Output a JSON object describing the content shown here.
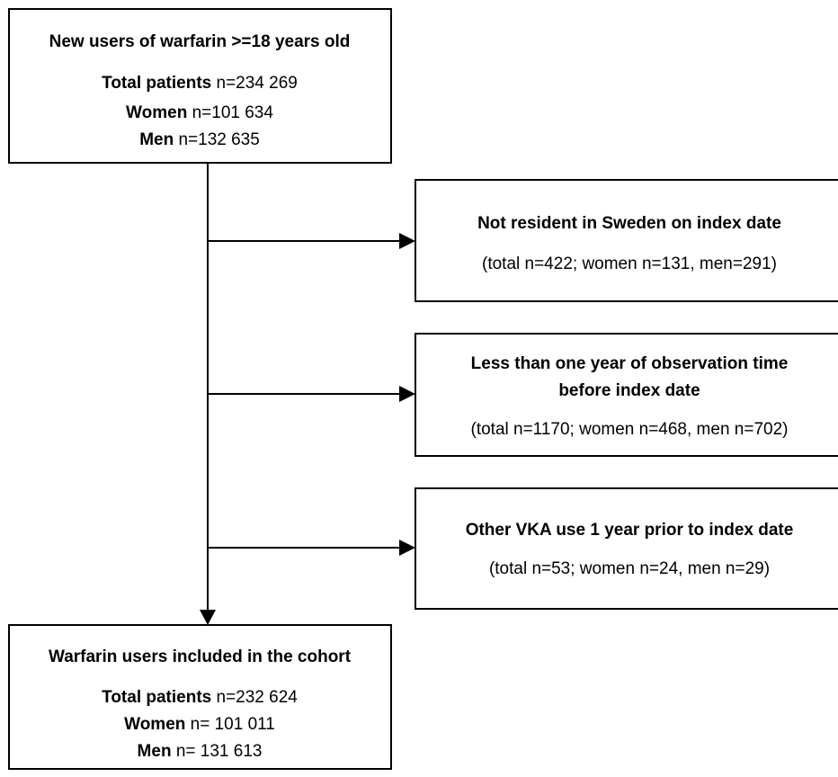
{
  "source": {
    "title": "New users of warfarin >=18 years old",
    "lines": [
      {
        "label": "Total patients",
        "value": "n=234 269"
      },
      {
        "label": "Women",
        "value": "n=101 634"
      },
      {
        "label": "Men",
        "value": "n=132 635"
      }
    ]
  },
  "exclusions": [
    {
      "title": [
        "Not resident in Sweden on index date"
      ],
      "detail": "(total n=422; women n=131, men=291)"
    },
    {
      "title": [
        "Less than one year of observation time",
        "before index date"
      ],
      "detail": "(total n=1170; women n=468, men n=702)"
    },
    {
      "title": [
        "Other VKA use 1 year prior to index date"
      ],
      "detail": "(total n=53; women n=24, men n=29)"
    }
  ],
  "result": {
    "title": "Warfarin users included in the cohort",
    "lines": [
      {
        "label": "Total patients",
        "value": "n=232 624"
      },
      {
        "label": "Women",
        "value": "n= 101 011"
      },
      {
        "label": "Men",
        "value": "n= 131 613"
      }
    ]
  }
}
